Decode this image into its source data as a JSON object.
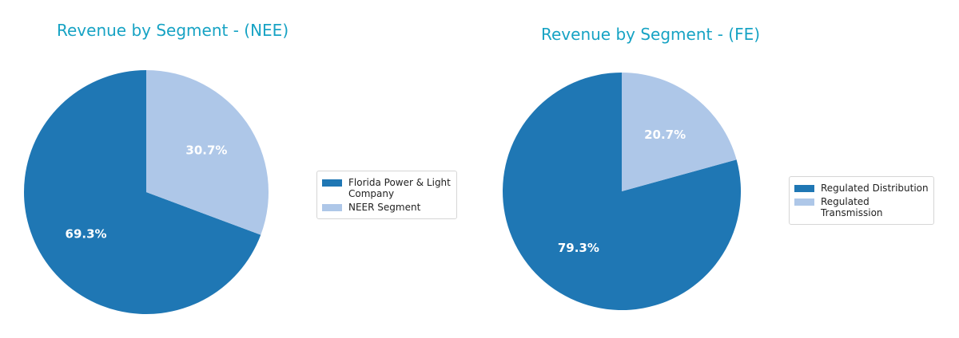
{
  "chart_data": [
    {
      "type": "pie",
      "title": "Revenue by Segment - (NEE)",
      "categories": [
        "Florida Power & Light Company",
        "NEER Segment"
      ],
      "values": [
        69.3,
        30.7
      ],
      "labels": [
        "69.3%",
        "30.7%"
      ],
      "colors": [
        "#1f77b4",
        "#aec7e8"
      ],
      "legend": {
        "placement": "right",
        "entries": [
          [
            "Florida Power &",
            "Light",
            "Company"
          ],
          [
            "NEER Segment"
          ]
        ]
      }
    },
    {
      "type": "pie",
      "title": "Revenue by Segment - (FE)",
      "categories": [
        "Regulated Distribution",
        "Regulated Transmission"
      ],
      "values": [
        79.3,
        20.7
      ],
      "labels": [
        "79.3%",
        "20.7%"
      ],
      "colors": [
        "#1f77b4",
        "#aec7e8"
      ],
      "legend": {
        "placement": "right",
        "entries": [
          [
            "Regulated Distribution"
          ],
          [
            "Regulated Transmission"
          ]
        ]
      }
    }
  ]
}
